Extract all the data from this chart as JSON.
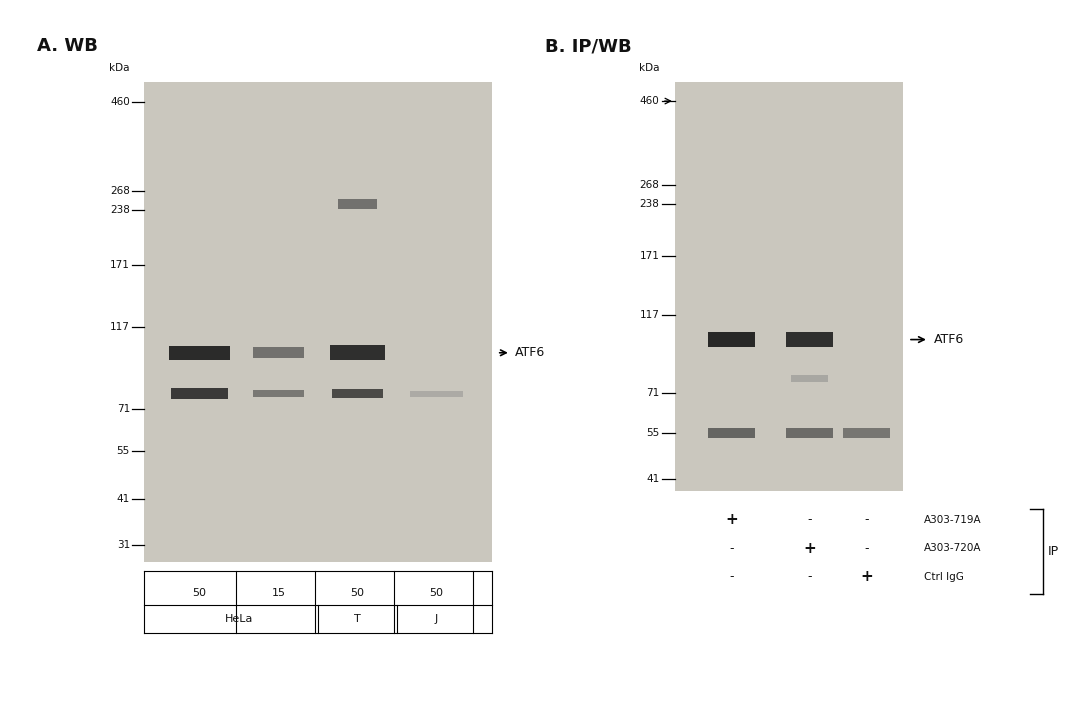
{
  "bg_color": "#f0ede8",
  "gel_bg_A": "#cac7be",
  "gel_bg_B": "#cac7be",
  "white_bg": "#ffffff",
  "dark_band": "#1a1a1a",
  "medium_band": "#444444",
  "light_band": "#808080",
  "very_light_band": "#aaaaaa",
  "panel_A_title": "A. WB",
  "panel_B_title": "B. IP/WB",
  "mw_markers_A": [
    460,
    268,
    238,
    171,
    117,
    71,
    55,
    41,
    31
  ],
  "mw_markers_B": [
    460,
    268,
    238,
    171,
    117,
    71,
    55,
    41
  ],
  "sample_labels_row1": [
    "50",
    "15",
    "50",
    "50"
  ],
  "ip_labels": [
    "A303-719A",
    "A303-720A",
    "Ctrl IgG"
  ],
  "ip_symbols_row1": [
    "+",
    "-",
    "-"
  ],
  "ip_symbols_row2": [
    "-",
    "+",
    "-"
  ],
  "ip_symbols_row3": [
    "-",
    "-",
    "+"
  ],
  "atf6_label": "ATF6",
  "ip_bracket_label": "IP",
  "kda_label": "kDa"
}
